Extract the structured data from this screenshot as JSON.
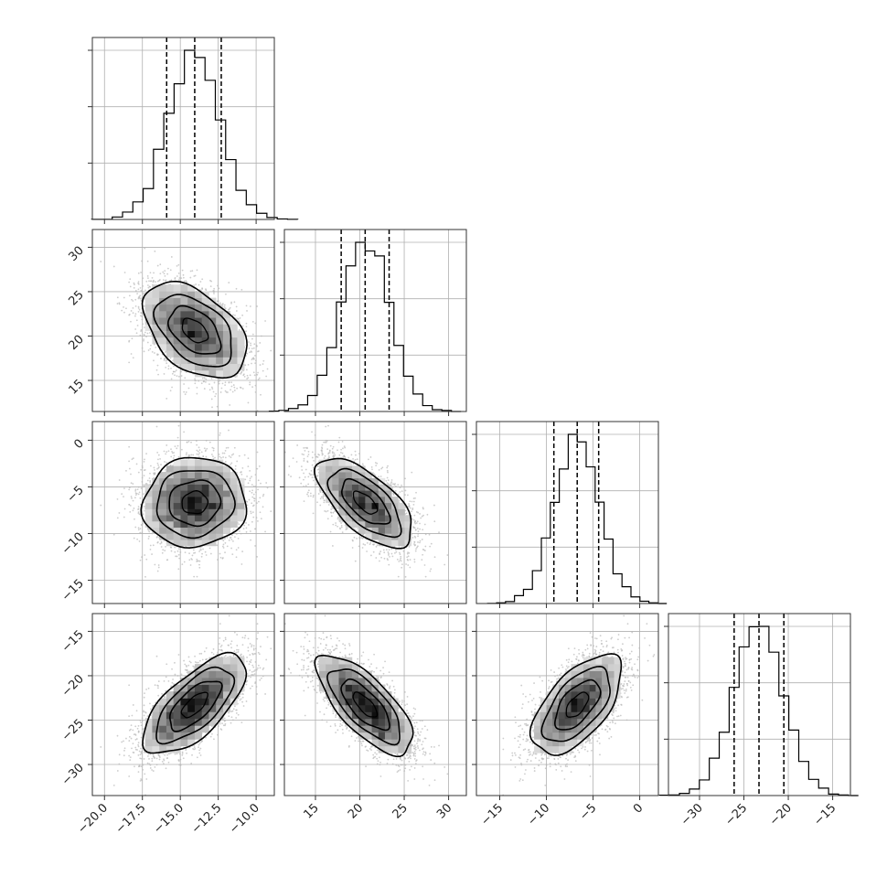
{
  "chart_data": {
    "type": "corner",
    "parameters": [
      {
        "index": 0,
        "range": [
          -20.8,
          -8.8
        ],
        "ticks": [
          -20.0,
          -17.5,
          -15.0,
          -12.5,
          -10.0
        ],
        "tick_labels": [
          "−20.0",
          "−17.5",
          "−15.0",
          "−12.5",
          "−10.0"
        ],
        "quantiles": [
          -15.9,
          -14.05,
          -12.3
        ],
        "median": -14.05,
        "sigma": 1.7
      },
      {
        "index": 1,
        "range": [
          11.5,
          32.0
        ],
        "ticks": [
          15,
          20,
          25,
          30
        ],
        "tick_labels": [
          "15",
          "20",
          "25",
          "30"
        ],
        "quantiles": [
          17.9,
          20.6,
          23.3
        ],
        "median": 20.6,
        "sigma": 2.7
      },
      {
        "index": 2,
        "range": [
          -17.5,
          2.0
        ],
        "ticks": [
          -15,
          -10,
          -5,
          0
        ],
        "tick_labels": [
          "−15",
          "−10",
          "−5",
          "0"
        ],
        "quantiles": [
          -9.2,
          -6.7,
          -4.4
        ],
        "median": -6.7,
        "sigma": 2.4
      },
      {
        "index": 3,
        "range": [
          -33.5,
          -13.0
        ],
        "ticks": [
          -30,
          -25,
          -20,
          -15
        ],
        "tick_labels": [
          "−30",
          "−25",
          "−20",
          "−15"
        ],
        "quantiles": [
          -26.1,
          -23.3,
          -20.5
        ],
        "median": -23.3,
        "sigma": 2.8
      }
    ],
    "correlations": {
      "1-0": -0.45,
      "2-0": 0.05,
      "2-1": -0.65,
      "3-0": 0.68,
      "3-1": -0.72,
      "3-2": 0.6
    },
    "histogram_bins": 20,
    "quantile_line_style": "dashed",
    "contour_levels_sigma": [
      0.5,
      1.0,
      1.5,
      2.0
    ],
    "grid": true,
    "colors": {
      "contour": "#000000",
      "points": "#b8b8b8",
      "grid": "#b0b0b0",
      "frame": "#333333"
    }
  }
}
